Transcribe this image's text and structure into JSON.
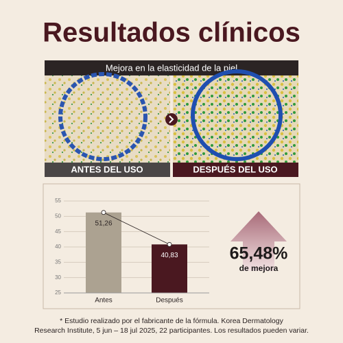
{
  "header": {
    "title": "Resultados clínicos",
    "banner": "Mejora en la elasticidad de la piel"
  },
  "images": {
    "before_label": "ANTES DEL USO",
    "after_label": "DESPUÉS DEL USO"
  },
  "chart_data": {
    "type": "bar",
    "categories": [
      "Antes",
      "Después"
    ],
    "values": [
      51.26,
      40.83
    ],
    "value_labels": [
      "51,26",
      "40,83"
    ],
    "colors": [
      "#aca291",
      "#4a1820"
    ],
    "ylim": [
      25,
      55
    ],
    "yticks": [
      25,
      30,
      35,
      40,
      45,
      50,
      55
    ],
    "grid": true,
    "annotation": {
      "value": "65,48%",
      "text": "de mejora"
    }
  },
  "footnote": [
    "* Estudio realizado por el fabricante de la fórmula. Korea Dermatology",
    "Research Institute, 5 jun – 18 jul 2025, 22 participantes. Los resultados pueden variar."
  ]
}
